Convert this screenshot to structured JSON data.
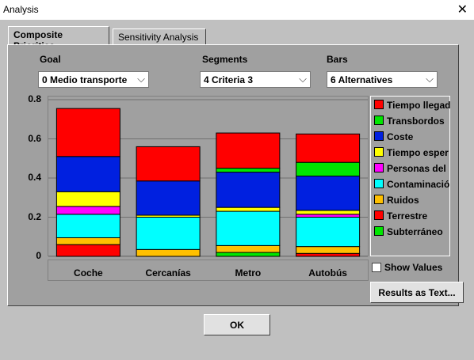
{
  "window": {
    "title": "Analysis",
    "close_glyph": "✕"
  },
  "tabs": [
    {
      "label": "Composite Priorities",
      "active": true
    },
    {
      "label": "Sensitivity Analysis",
      "active": false
    }
  ],
  "controls": {
    "goal_label": "Goal",
    "goal_value": "0 Medio transporte",
    "segments_label": "Segments",
    "segments_value": "4 Criteria 3",
    "bars_label": "Bars",
    "bars_value": "6 Alternatives",
    "dropdown_arrow": "⌵"
  },
  "chart_data": {
    "type": "bar",
    "stacked": true,
    "categories": [
      "Coche",
      "Cercanías",
      "Metro",
      "Autobús"
    ],
    "ylim": [
      0,
      0.8
    ],
    "yticks": [
      "0",
      "0.2",
      "0.4",
      "0.6",
      "0.8"
    ],
    "grid": true,
    "legend_position": "right",
    "series": [
      {
        "name": "Subterráneo",
        "color": "#00e600",
        "values": [
          0.0,
          0.0,
          0.02,
          0.0
        ]
      },
      {
        "name": "Terrestre",
        "color": "#ff0000",
        "values": [
          0.06,
          0.0,
          0.0,
          0.015
        ]
      },
      {
        "name": "Ruidos",
        "color": "#ffc000",
        "values": [
          0.035,
          0.035,
          0.035,
          0.035
        ]
      },
      {
        "name": "Contaminació",
        "color": "#00ffff",
        "values": [
          0.12,
          0.165,
          0.175,
          0.15
        ]
      },
      {
        "name": "Personas del",
        "color": "#ff00ff",
        "values": [
          0.04,
          0.0,
          0.0,
          0.015
        ]
      },
      {
        "name": "Tiempo esper",
        "color": "#ffff00",
        "values": [
          0.075,
          0.01,
          0.02,
          0.02
        ]
      },
      {
        "name": "Coste",
        "color": "#0020e0",
        "values": [
          0.18,
          0.175,
          0.18,
          0.175
        ]
      },
      {
        "name": "Transbordos",
        "color": "#00e600",
        "values": [
          0.0,
          0.0,
          0.02,
          0.07
        ]
      },
      {
        "name": "Tiempo llegad",
        "color": "#ff0000",
        "values": [
          0.245,
          0.175,
          0.18,
          0.145
        ]
      }
    ]
  },
  "legend_items": [
    {
      "name": "Tiempo llegad",
      "color": "#ff0000"
    },
    {
      "name": "Transbordos",
      "color": "#00e600"
    },
    {
      "name": "Coste",
      "color": "#0020e0"
    },
    {
      "name": "Tiempo esper",
      "color": "#ffff00"
    },
    {
      "name": "Personas del",
      "color": "#ff00ff"
    },
    {
      "name": "Contaminació",
      "color": "#00ffff"
    },
    {
      "name": "Ruidos",
      "color": "#ffc000"
    },
    {
      "name": "Terrestre",
      "color": "#ff0000"
    },
    {
      "name": "Subterráneo",
      "color": "#00e600"
    }
  ],
  "show_values": {
    "label": "Show Values",
    "checked": false
  },
  "buttons": {
    "results": "Results as Text...",
    "ok": "OK"
  }
}
